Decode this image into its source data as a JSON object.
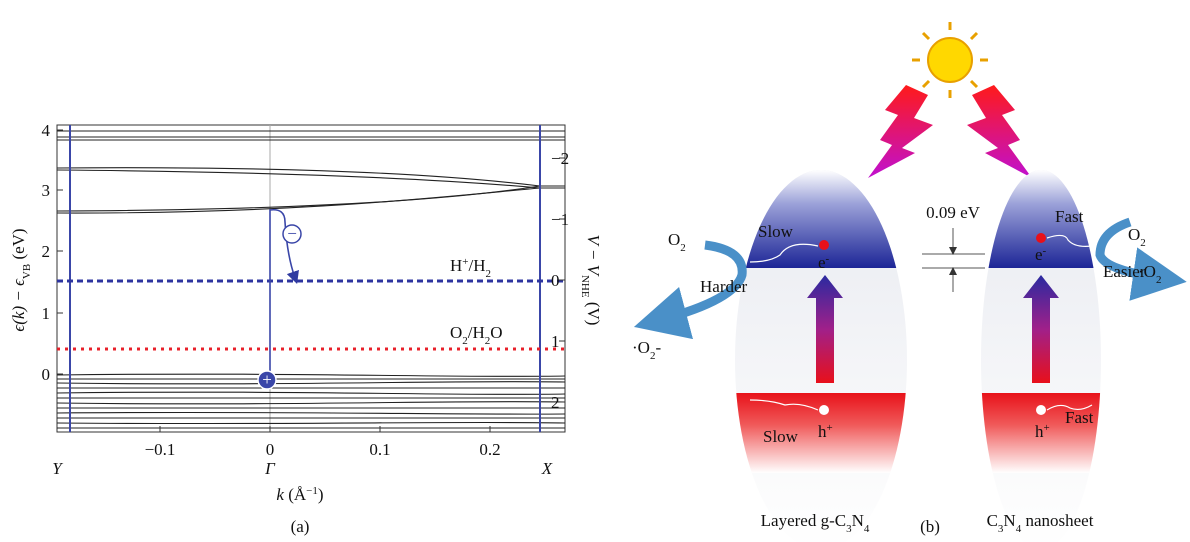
{
  "panel_a": {
    "y_left_ticks": [
      "4",
      "3",
      "2",
      "1",
      "0"
    ],
    "y_right_ticks": [
      "−2",
      "−1",
      "0",
      "1",
      "2"
    ],
    "x_ticks": [
      "−0.1",
      "0",
      "0.1",
      "0.2"
    ],
    "k_points": [
      "Y",
      "Γ",
      "X"
    ],
    "y_left_label": [
      "ϵ(k) − ϵ",
      "VB",
      " (eV)"
    ],
    "y_right_label": [
      "V − V",
      "NHE",
      " (V)"
    ],
    "x_label": [
      "k",
      " (Å",
      "−1",
      ")"
    ],
    "h_label": [
      "H",
      "+",
      "/H",
      "2"
    ],
    "o_label": [
      "O",
      "2",
      "/H",
      "2",
      "O"
    ],
    "charges": [
      "−",
      "+"
    ],
    "caption": "(a)"
  },
  "panel_b": {
    "gap_label": "0.09 eV",
    "left": {
      "o2": [
        "O",
        "2"
      ],
      "harder": "Harder",
      "radical": [
        "·O",
        "2",
        "-"
      ],
      "slow_e": "Slow",
      "e": [
        "e",
        "-"
      ],
      "h": [
        "h",
        "+"
      ],
      "slow_h": "Slow",
      "name": [
        "Layered g-C",
        "3",
        "N",
        "4"
      ]
    },
    "right": {
      "fast_e": "Fast",
      "easier": "Easier",
      "o2": [
        "O",
        "2"
      ],
      "radical": [
        "·O",
        "2"
      ],
      "e": [
        "e",
        "-"
      ],
      "h": [
        "h",
        "+"
      ],
      "fast_h": "Fast",
      "name": [
        "C",
        "3",
        "N",
        "4",
        " nanosheet"
      ]
    },
    "caption": "(b)"
  }
}
